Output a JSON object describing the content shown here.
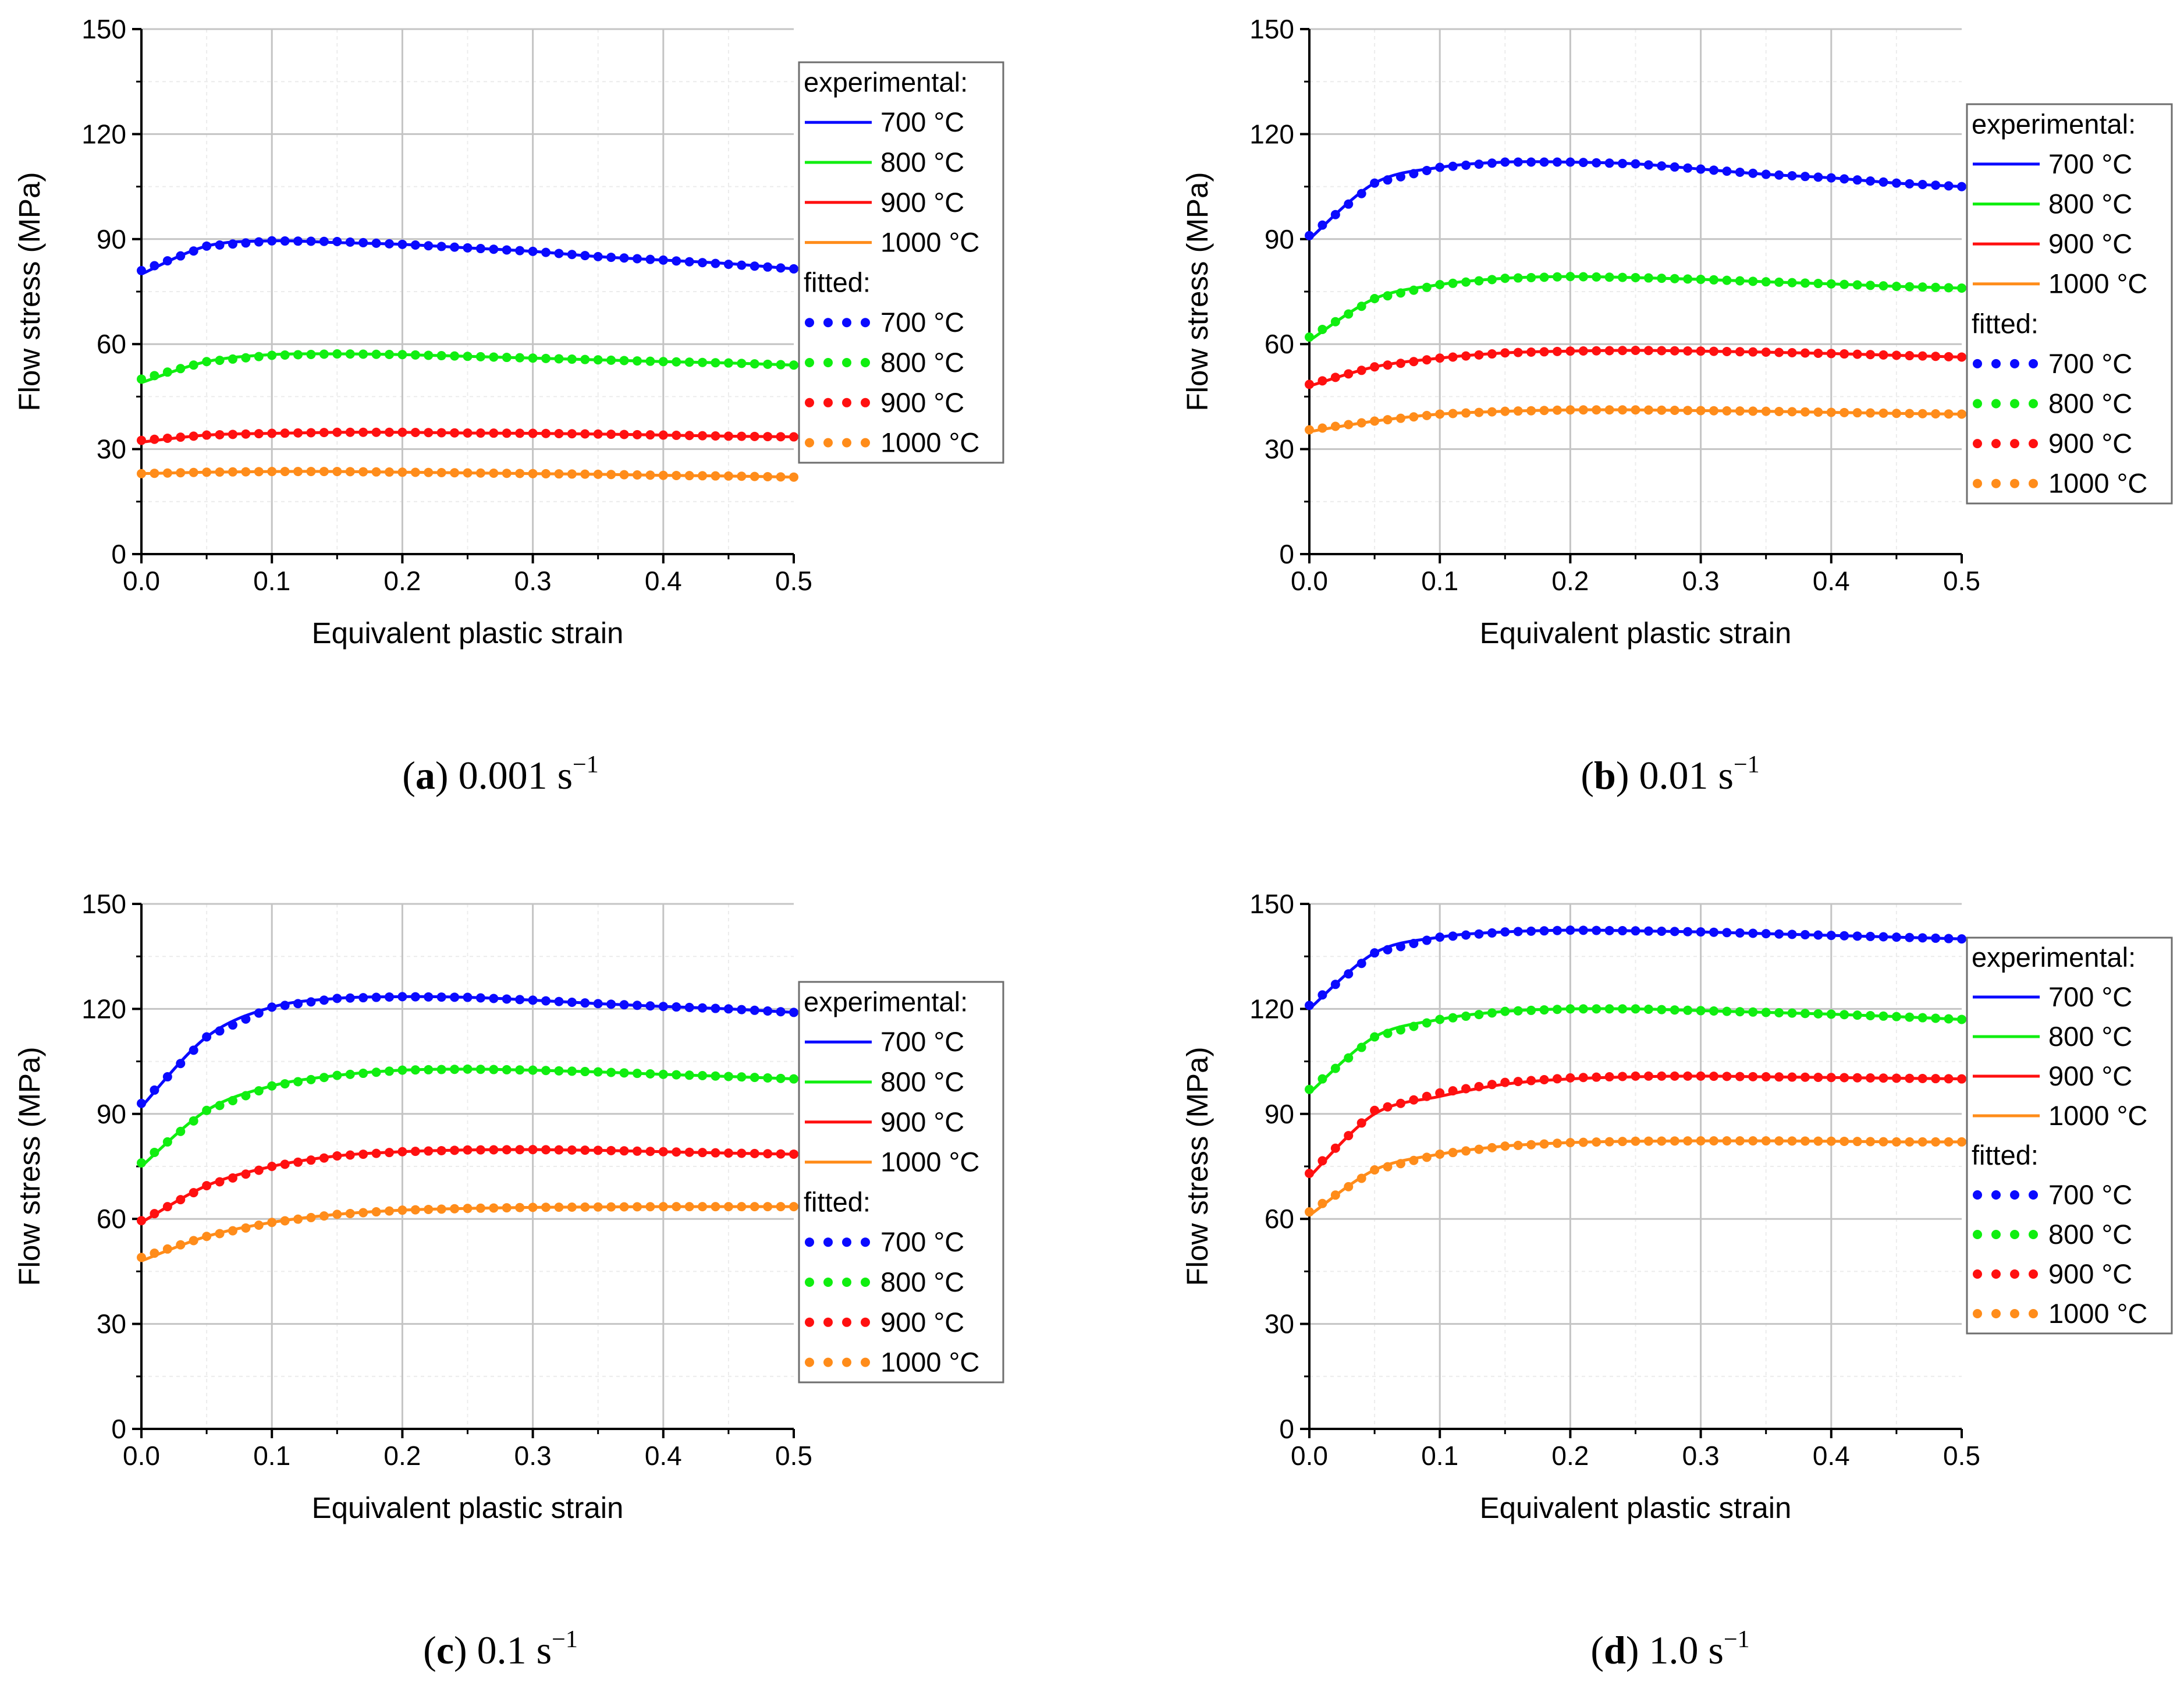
{
  "figure": {
    "colors": {
      "700": "#0a0aff",
      "800": "#10ee10",
      "900": "#ff1010",
      "1000": "#ff8c1a"
    },
    "legend": {
      "experimental_label": "experimental:",
      "fitted_label": "fitted:",
      "entries": [
        "700 °C",
        "800 °C",
        "900 °C",
        "1000 °C"
      ]
    },
    "axis": {
      "xlabel": "Equivalent plastic strain",
      "ylabel": "Flow stress (MPa)",
      "xticks": [
        "0.0",
        "0.1",
        "0.2",
        "0.3",
        "0.4",
        "0.5"
      ],
      "yticks": [
        "0",
        "30",
        "60",
        "90",
        "120",
        "150"
      ]
    }
  },
  "chart_data": [
    {
      "type": "line",
      "caption": {
        "letter": "a",
        "rate": "0.001 s",
        "superscript": "−1"
      },
      "xlabel": "Equivalent plastic strain",
      "ylabel": "Flow stress (MPa)",
      "xlim": [
        0,
        0.5
      ],
      "ylim": [
        0,
        150
      ],
      "x": [
        0,
        0.05,
        0.1,
        0.15,
        0.2,
        0.25,
        0.3,
        0.35,
        0.4,
        0.45,
        0.5
      ],
      "series": [
        {
          "name": "700 °C",
          "experimental": [
            80,
            88,
            89.5,
            89,
            88.5,
            87.5,
            86.5,
            85,
            84,
            83,
            81.5
          ],
          "fitted": [
            81,
            88,
            89.5,
            89.3,
            88.5,
            87.5,
            86.5,
            85,
            84,
            82.8,
            81.5
          ]
        },
        {
          "name": "800 °C",
          "experimental": [
            49,
            55,
            57,
            57.2,
            57,
            56.5,
            56,
            55.5,
            55,
            54.6,
            54
          ],
          "fitted": [
            50,
            55,
            56.8,
            57.2,
            57,
            56.5,
            56,
            55.5,
            55,
            54.6,
            54
          ]
        },
        {
          "name": "900 °C",
          "experimental": [
            32,
            34,
            34.5,
            34.8,
            34.8,
            34.6,
            34.5,
            34.3,
            34,
            33.7,
            33.5
          ],
          "fitted": [
            32.5,
            34,
            34.5,
            34.8,
            34.8,
            34.6,
            34.5,
            34.3,
            34,
            33.7,
            33.5
          ]
        },
        {
          "name": "1000 °C",
          "experimental": [
            23,
            23.4,
            23.6,
            23.6,
            23.4,
            23.2,
            23,
            22.8,
            22.5,
            22.3,
            22
          ],
          "fitted": [
            23,
            23.4,
            23.6,
            23.6,
            23.4,
            23.2,
            23,
            22.8,
            22.5,
            22.3,
            22
          ]
        }
      ]
    },
    {
      "type": "line",
      "caption": {
        "letter": "b",
        "rate": "0.01 s",
        "superscript": "−1"
      },
      "xlabel": "Equivalent plastic strain",
      "ylabel": "Flow stress (MPa)",
      "xlim": [
        0,
        0.5
      ],
      "ylim": [
        0,
        150
      ],
      "x": [
        0,
        0.05,
        0.1,
        0.15,
        0.2,
        0.25,
        0.3,
        0.35,
        0.4,
        0.45,
        0.5
      ],
      "series": [
        {
          "name": "700 °C",
          "experimental": [
            90,
            106,
            110.5,
            112,
            112,
            111.5,
            110,
            108.5,
            107.5,
            106,
            105
          ],
          "fitted": [
            91,
            106,
            110.5,
            112,
            112,
            111.5,
            110,
            108.5,
            107.5,
            106,
            105
          ]
        },
        {
          "name": "800 °C",
          "experimental": [
            61,
            73,
            77,
            78.8,
            79.3,
            79,
            78.5,
            77.8,
            77.2,
            76.5,
            76
          ],
          "fitted": [
            62,
            73,
            77,
            78.8,
            79.3,
            79,
            78.5,
            77.8,
            77.2,
            76.5,
            76
          ]
        },
        {
          "name": "900 °C",
          "experimental": [
            48,
            53.5,
            56,
            57.5,
            58,
            58.2,
            58,
            57.7,
            57.3,
            56.8,
            56.3
          ],
          "fitted": [
            48.5,
            53.5,
            56,
            57.5,
            58,
            58.2,
            58,
            57.7,
            57.3,
            56.8,
            56.3
          ]
        },
        {
          "name": "1000 °C",
          "experimental": [
            35,
            38,
            40,
            40.8,
            41.2,
            41.2,
            41,
            40.8,
            40.5,
            40.2,
            40
          ],
          "fitted": [
            35.5,
            38,
            40,
            40.8,
            41.2,
            41.2,
            41,
            40.8,
            40.5,
            40.2,
            40
          ]
        }
      ]
    },
    {
      "type": "line",
      "caption": {
        "letter": "c",
        "rate": "0.1 s",
        "superscript": "−1"
      },
      "xlabel": "Equivalent plastic strain",
      "ylabel": "Flow stress (MPa)",
      "xlim": [
        0,
        0.5
      ],
      "ylim": [
        0,
        150
      ],
      "x": [
        0,
        0.05,
        0.1,
        0.15,
        0.2,
        0.25,
        0.3,
        0.35,
        0.4,
        0.45,
        0.5
      ],
      "series": [
        {
          "name": "700 °C",
          "experimental": [
            92,
            112,
            120.5,
            123,
            123.5,
            123.3,
            122.5,
            121.5,
            120.7,
            120,
            119
          ],
          "fitted": [
            93,
            112,
            120.5,
            123,
            123.5,
            123.3,
            122.5,
            121.5,
            120.7,
            120,
            119
          ]
        },
        {
          "name": "800 °C",
          "experimental": [
            75,
            91,
            98,
            101,
            102.5,
            102.8,
            102.5,
            102,
            101.3,
            100.7,
            100
          ],
          "fitted": [
            76,
            91,
            98,
            101,
            102.5,
            102.8,
            102.5,
            102,
            101.3,
            100.7,
            100
          ]
        },
        {
          "name": "900 °C",
          "experimental": [
            59,
            69.5,
            75,
            78,
            79.2,
            79.7,
            79.8,
            79.6,
            79.2,
            78.8,
            78.5
          ],
          "fitted": [
            59.5,
            69.5,
            75,
            78,
            79.2,
            79.7,
            79.8,
            79.6,
            79.2,
            78.8,
            78.5
          ]
        },
        {
          "name": "1000 °C",
          "experimental": [
            48,
            55,
            59,
            61.3,
            62.5,
            63,
            63.3,
            63.4,
            63.5,
            63.5,
            63.5
          ],
          "fitted": [
            49,
            55,
            59,
            61.3,
            62.5,
            63,
            63.3,
            63.4,
            63.5,
            63.5,
            63.5
          ]
        }
      ]
    },
    {
      "type": "line",
      "caption": {
        "letter": "d",
        "rate": "1.0 s",
        "superscript": "−1"
      },
      "xlabel": "Equivalent plastic strain",
      "ylabel": "Flow stress (MPa)",
      "xlim": [
        0,
        0.5
      ],
      "ylim": [
        0,
        150
      ],
      "x": [
        0,
        0.05,
        0.1,
        0.15,
        0.2,
        0.25,
        0.3,
        0.35,
        0.4,
        0.45,
        0.5
      ],
      "series": [
        {
          "name": "700 °C",
          "experimental": [
            120,
            136,
            140.5,
            142,
            142.5,
            142.3,
            142,
            141.5,
            141,
            140.5,
            140
          ],
          "fitted": [
            121,
            136,
            140.5,
            142,
            142.5,
            142.3,
            142,
            141.5,
            141,
            140.5,
            140
          ]
        },
        {
          "name": "800 °C",
          "experimental": [
            96,
            112,
            117,
            119.3,
            120,
            120,
            119.5,
            119,
            118.5,
            117.8,
            117
          ],
          "fitted": [
            97,
            112,
            117,
            119.3,
            120,
            120,
            119.5,
            119,
            118.5,
            117.8,
            117
          ]
        },
        {
          "name": "900 °C",
          "experimental": [
            72,
            90,
            95,
            98.5,
            100,
            100.6,
            100.8,
            100.6,
            100.4,
            100.2,
            100
          ],
          "fitted": [
            73,
            91,
            96,
            99,
            100.3,
            100.8,
            100.8,
            100.6,
            100.4,
            100.2,
            100
          ]
        },
        {
          "name": "1000 °C",
          "experimental": [
            61,
            74,
            78.5,
            80.8,
            81.8,
            82.2,
            82.3,
            82.3,
            82.2,
            82,
            82
          ],
          "fitted": [
            62,
            74,
            78.5,
            80.8,
            81.8,
            82.2,
            82.3,
            82.3,
            82.2,
            82,
            82
          ]
        }
      ]
    }
  ]
}
